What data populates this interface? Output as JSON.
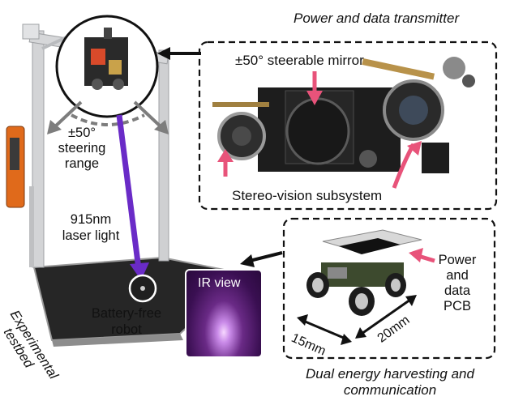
{
  "labels": {
    "power_transmitter": "Power and data transmitter",
    "steerable_mirror": "±50° steerable mirror",
    "steering_range": [
      "±50°",
      "steering",
      "range"
    ],
    "laser": [
      "915nm",
      "laser light"
    ],
    "stereo_vision": "Stereo-vision subsystem",
    "pcb": [
      "Power",
      "and",
      "data",
      "PCB"
    ],
    "ir_view": "IR view",
    "robot": [
      "Battery-free",
      "robot"
    ],
    "testbed": [
      "Experimental",
      "testbed"
    ],
    "dim_15": "15mm",
    "dim_20": "20mm",
    "dual_energy": [
      "Dual energy harvesting and",
      "communication"
    ]
  },
  "colors": {
    "laser": "#6a2bc7",
    "pointer": "#e8537a",
    "frame": "#c9cacc",
    "floor": "#2c2c2c",
    "ir_glow": "#d9a3f5"
  }
}
